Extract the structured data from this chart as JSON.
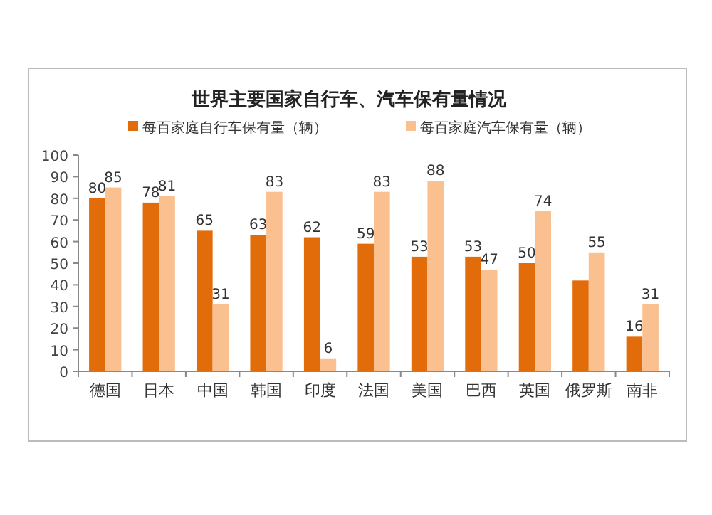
{
  "chart_data": {
    "type": "bar",
    "title": "世界主要国家自行车、汽车保有量情况",
    "categories": [
      "德国",
      "日本",
      "中国",
      "韩国",
      "印度",
      "法国",
      "美国",
      "巴西",
      "英国",
      "俄罗斯",
      "南非"
    ],
    "series": [
      {
        "name": "每百家庭自行车保有量（辆）",
        "color": "#e26b0a",
        "values": [
          80,
          78,
          65,
          63,
          62,
          59,
          53,
          53,
          50,
          42,
          16
        ],
        "value_labels": [
          "80",
          "78",
          "65",
          "63",
          "62",
          "59",
          "53",
          "53",
          "50",
          null,
          "16"
        ]
      },
      {
        "name": "每百家庭汽车保有量（辆）",
        "color": "#fac090",
        "values": [
          85,
          81,
          31,
          83,
          6,
          83,
          88,
          47,
          74,
          55,
          31
        ],
        "value_labels": [
          "85",
          "81",
          "31",
          "83",
          "6",
          "83",
          "88",
          "47",
          "74",
          "55",
          "31"
        ]
      }
    ],
    "ylim": [
      0,
      100
    ],
    "yticks": [
      0,
      10,
      20,
      30,
      40,
      50,
      60,
      70,
      80,
      90,
      100
    ],
    "grid": false,
    "legend": "top"
  }
}
